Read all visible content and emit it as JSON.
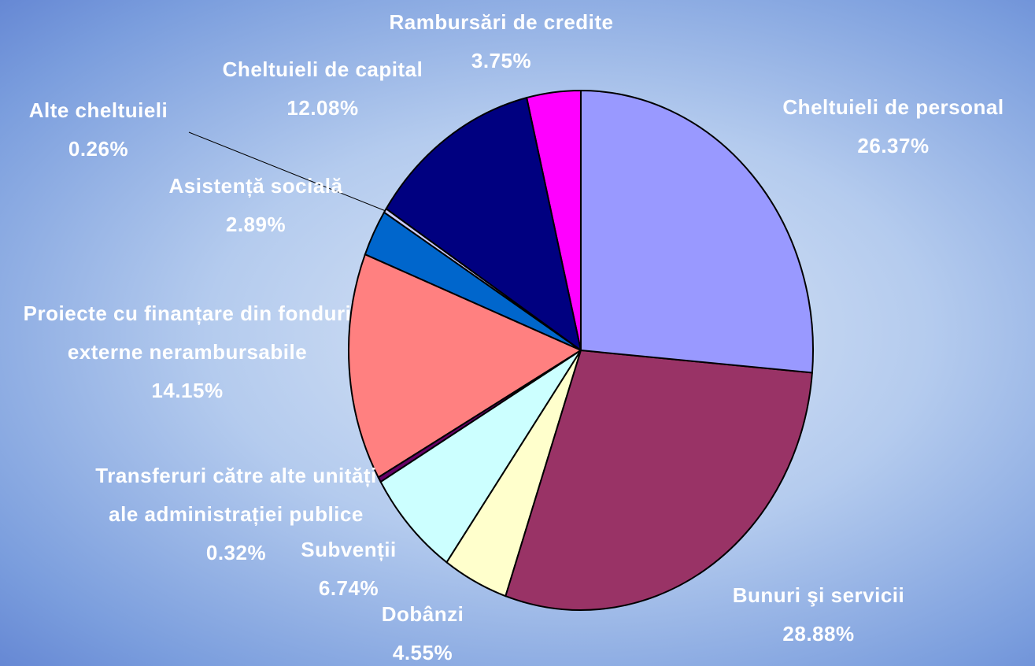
{
  "chart_data": {
    "type": "pie",
    "categories": [
      "Cheltuieli de personal",
      "Bunuri şi servicii",
      "Dobânzi",
      "Subvenții",
      "Transferuri către alte unități ale administrației publice",
      "Proiecte cu finanțare din fonduri externe nerambursabile",
      "Asistență socială",
      "Alte cheltuieli",
      "Cheltuieli de capital",
      "Rambursări de credite"
    ],
    "values": [
      26.37,
      28.88,
      4.55,
      6.74,
      0.32,
      14.15,
      2.89,
      0.26,
      12.08,
      3.75
    ],
    "value_labels": [
      "26.37%",
      "28.88%",
      "4.55%",
      "6.74%",
      "0.32%",
      "14.15%",
      "2.89%",
      "0.26%",
      "12.08%",
      "3.75%"
    ],
    "colors": [
      "#9999ff",
      "#993366",
      "#ffffcc",
      "#ccffff",
      "#660066",
      "#ff8080",
      "#0066cc",
      "#ccccff",
      "#000080",
      "#ff00ff"
    ]
  }
}
